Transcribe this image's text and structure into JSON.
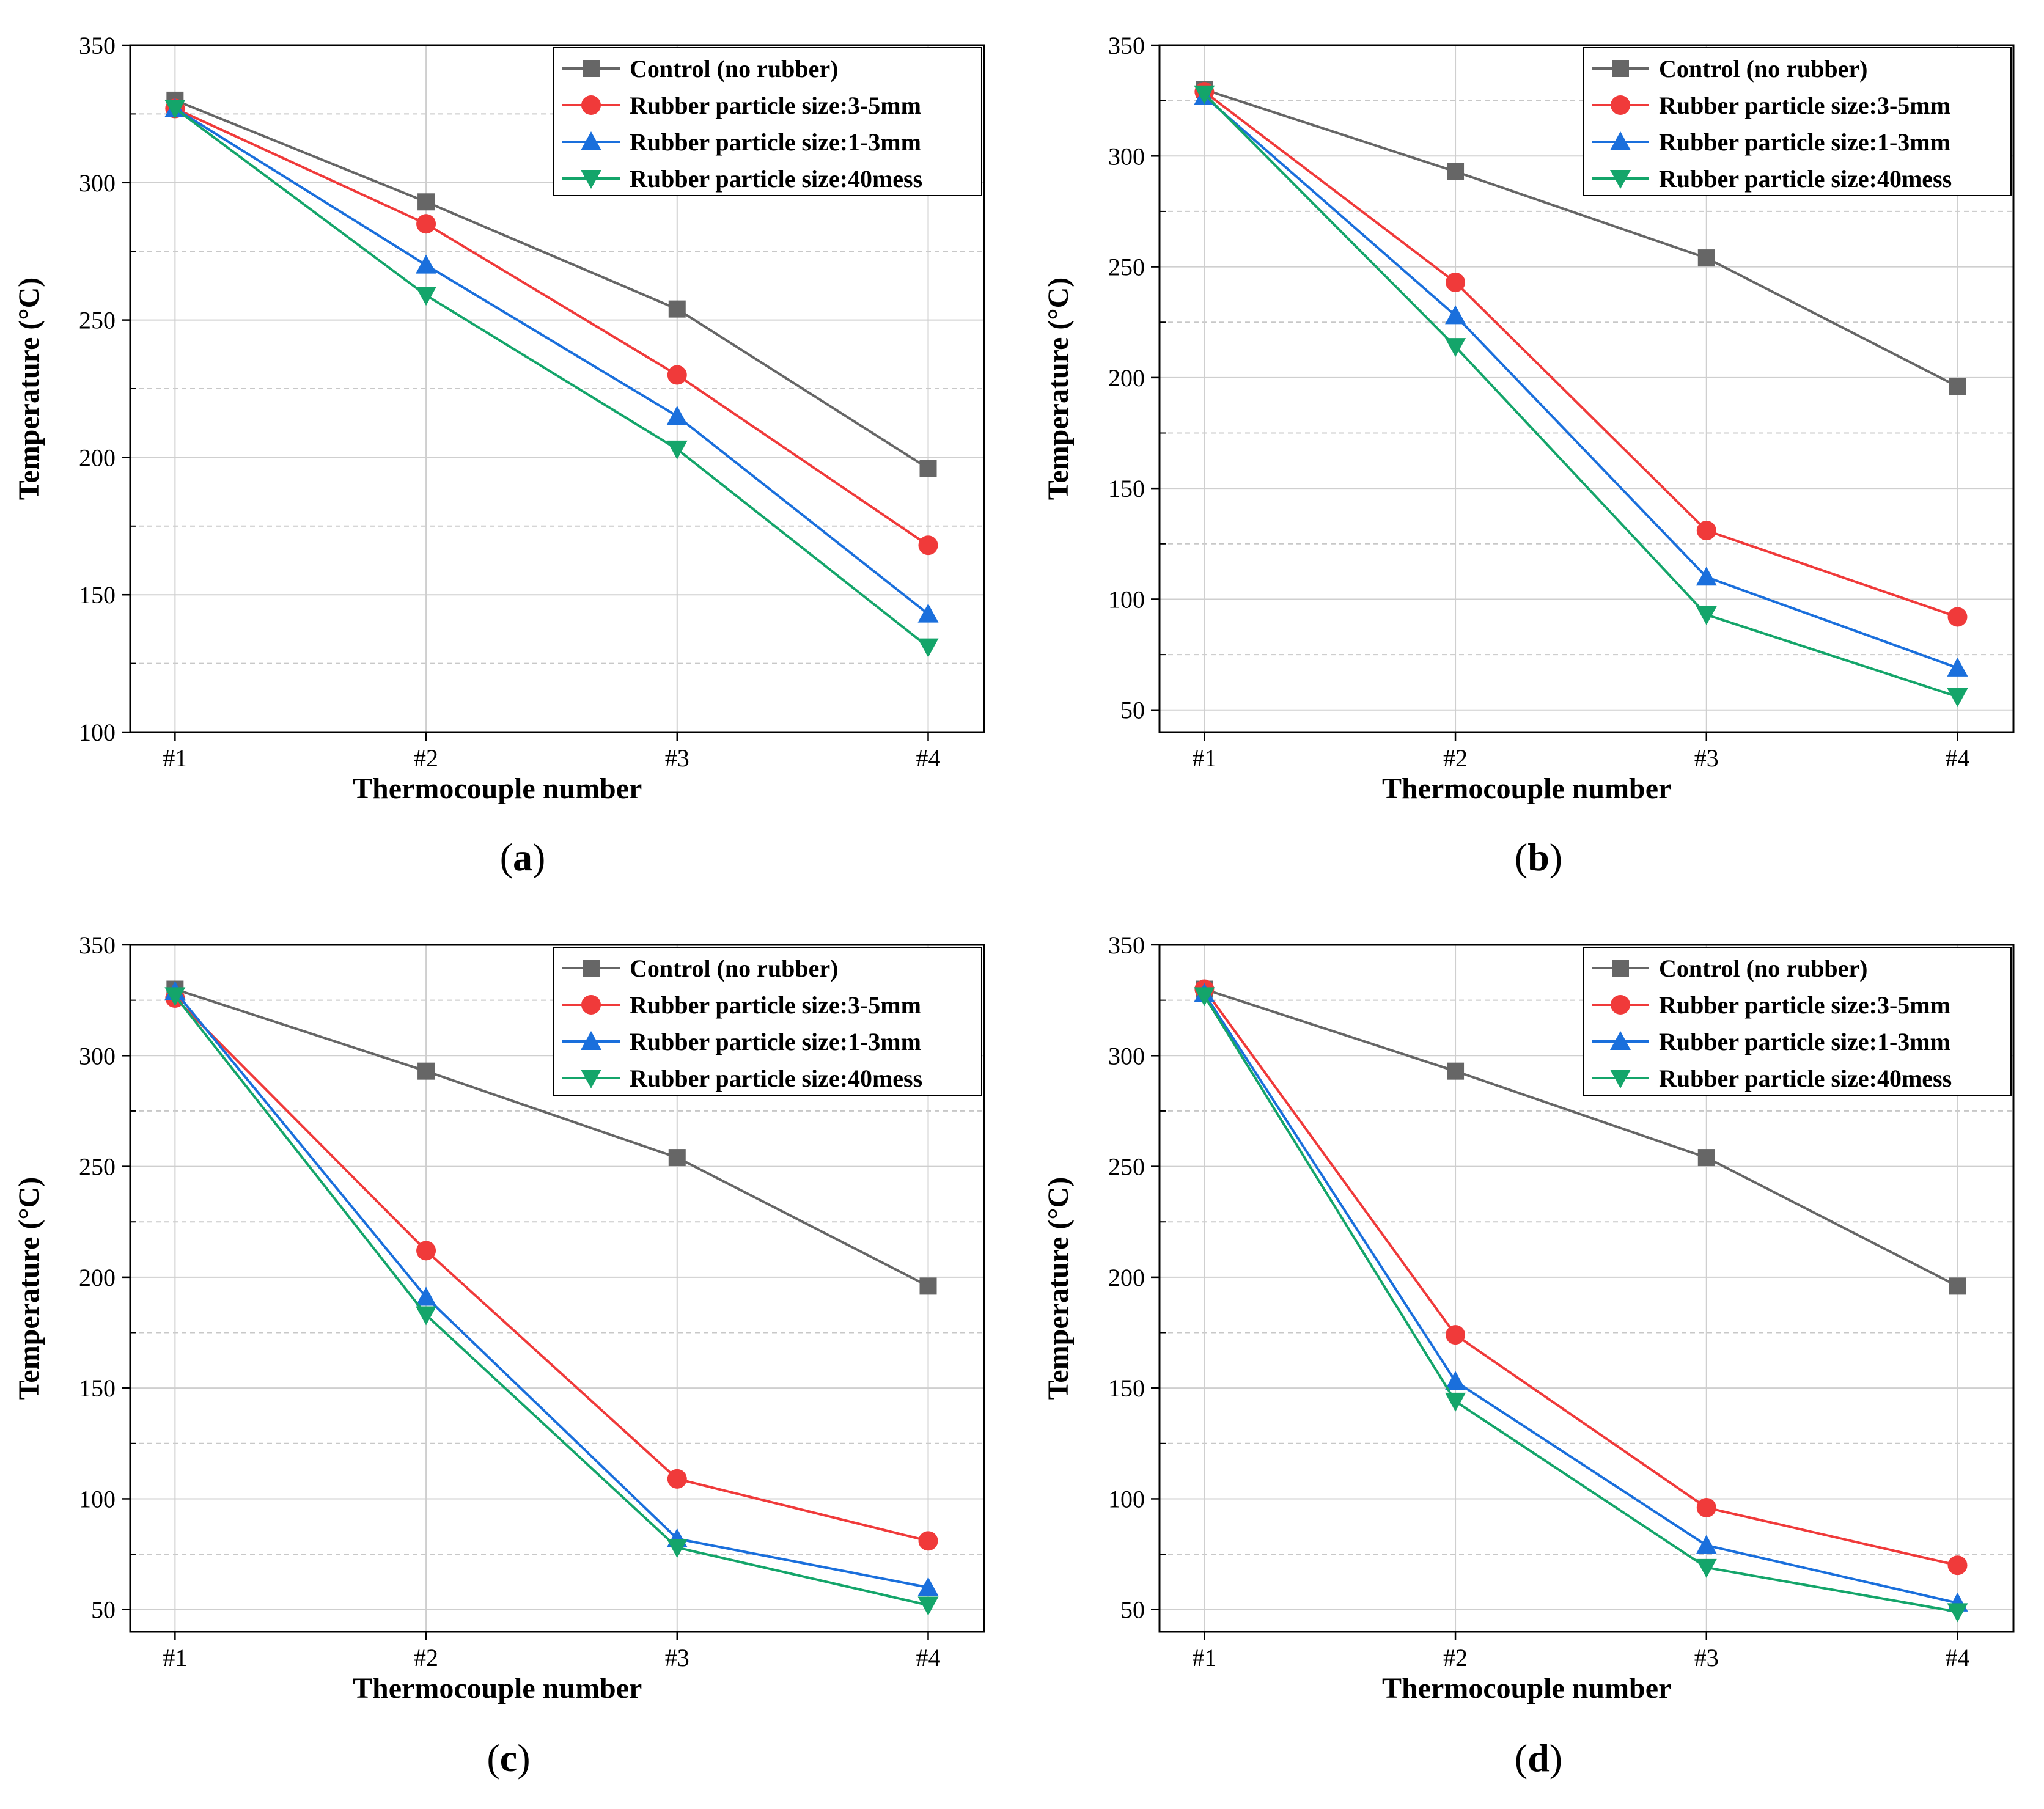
{
  "figure": {
    "colors": {
      "control": "#666666",
      "r35": "#f03a3a",
      "r13": "#1a6fdc",
      "r40": "#14a56a"
    },
    "series_keys": [
      "control",
      "r35",
      "r13",
      "r40"
    ],
    "series_markers": [
      "square",
      "circle",
      "triangle-up",
      "triangle-down"
    ]
  },
  "chart_data": [
    {
      "type": "line",
      "panel": "a",
      "panel_label": {
        "open": "(",
        "letter": "a",
        "close": ")"
      },
      "xlabel": "Thermocouple number",
      "ylabel": "Temperature (°C)",
      "categories": [
        "#1",
        "#2",
        "#3",
        "#4"
      ],
      "ylim": [
        100,
        350
      ],
      "yticks": [
        100,
        150,
        200,
        250,
        300,
        350
      ],
      "ytick_labels": [
        "100",
        "150",
        "200",
        "250",
        "300",
        "350"
      ],
      "minor_yticks": [
        125,
        175,
        225,
        275,
        325
      ],
      "legend_position": "top-right",
      "series": [
        {
          "name": "Control (no rubber)",
          "values": [
            330,
            293,
            254,
            196
          ]
        },
        {
          "name": "Rubber particle size:3-5mm",
          "values": [
            327,
            285,
            230,
            168
          ]
        },
        {
          "name": "Rubber particle size:1-3mm",
          "values": [
            327,
            270,
            215,
            143
          ]
        },
        {
          "name": "Rubber particle size:40mess",
          "values": [
            327,
            259,
            203,
            131
          ]
        }
      ]
    },
    {
      "type": "line",
      "panel": "b",
      "panel_label": {
        "open": "(",
        "letter": "b",
        "close": ")"
      },
      "xlabel": "Thermocouple number",
      "ylabel": "Temperature (°C)",
      "categories": [
        "#1",
        "#2",
        "#3",
        "#4"
      ],
      "ylim": [
        40,
        350
      ],
      "yticks": [
        50,
        100,
        150,
        200,
        250,
        300,
        350
      ],
      "ytick_labels": [
        "50",
        "100",
        "150",
        "200",
        "250",
        "300",
        "350"
      ],
      "minor_yticks": [
        75,
        125,
        175,
        225,
        275,
        325
      ],
      "legend_position": "top-right",
      "series": [
        {
          "name": "Control (no rubber)",
          "values": [
            330,
            293,
            254,
            196
          ]
        },
        {
          "name": "Rubber particle size:3-5mm",
          "values": [
            329,
            243,
            131,
            92
          ]
        },
        {
          "name": "Rubber particle size:1-3mm",
          "values": [
            327,
            228,
            110,
            69
          ]
        },
        {
          "name": "Rubber particle size:40mess",
          "values": [
            328,
            214,
            93,
            56
          ]
        }
      ]
    },
    {
      "type": "line",
      "panel": "c",
      "panel_label": {
        "open": "(",
        "letter": "c",
        "close": ")"
      },
      "xlabel": "Thermocouple number",
      "ylabel": "Temperature (°C)",
      "categories": [
        "#1",
        "#2",
        "#3",
        "#4"
      ],
      "ylim": [
        40,
        350
      ],
      "yticks": [
        50,
        100,
        150,
        200,
        250,
        300,
        350
      ],
      "ytick_labels": [
        "50",
        "100",
        "150",
        "200",
        "250",
        "300",
        "350"
      ],
      "minor_yticks": [
        75,
        125,
        175,
        225,
        275,
        325
      ],
      "legend_position": "top-right",
      "series": [
        {
          "name": "Control (no rubber)",
          "values": [
            330,
            293,
            254,
            196
          ]
        },
        {
          "name": "Rubber particle size:3-5mm",
          "values": [
            326,
            212,
            109,
            81
          ]
        },
        {
          "name": "Rubber particle size:1-3mm",
          "values": [
            329,
            191,
            82,
            60
          ]
        },
        {
          "name": "Rubber particle size:40mess",
          "values": [
            327,
            183,
            78,
            52
          ]
        }
      ]
    },
    {
      "type": "line",
      "panel": "d",
      "panel_label": {
        "open": "(",
        "letter": "d",
        "close": ")"
      },
      "xlabel": "Thermocouple number",
      "ylabel": "Temperature (°C)",
      "categories": [
        "#1",
        "#2",
        "#3",
        "#4"
      ],
      "ylim": [
        40,
        350
      ],
      "yticks": [
        50,
        100,
        150,
        200,
        250,
        300,
        350
      ],
      "ytick_labels": [
        "50",
        "100",
        "150",
        "200",
        "250",
        "300",
        "350"
      ],
      "minor_yticks": [
        75,
        125,
        175,
        225,
        275,
        325
      ],
      "legend_position": "top-right",
      "series": [
        {
          "name": "Control (no rubber)",
          "values": [
            330,
            293,
            254,
            196
          ]
        },
        {
          "name": "Rubber particle size:3-5mm",
          "values": [
            330,
            174,
            96,
            70
          ]
        },
        {
          "name": "Rubber particle size:1-3mm",
          "values": [
            328,
            153,
            79,
            53
          ]
        },
        {
          "name": "Rubber particle size:40mess",
          "values": [
            327,
            144,
            69,
            49
          ]
        }
      ]
    }
  ]
}
